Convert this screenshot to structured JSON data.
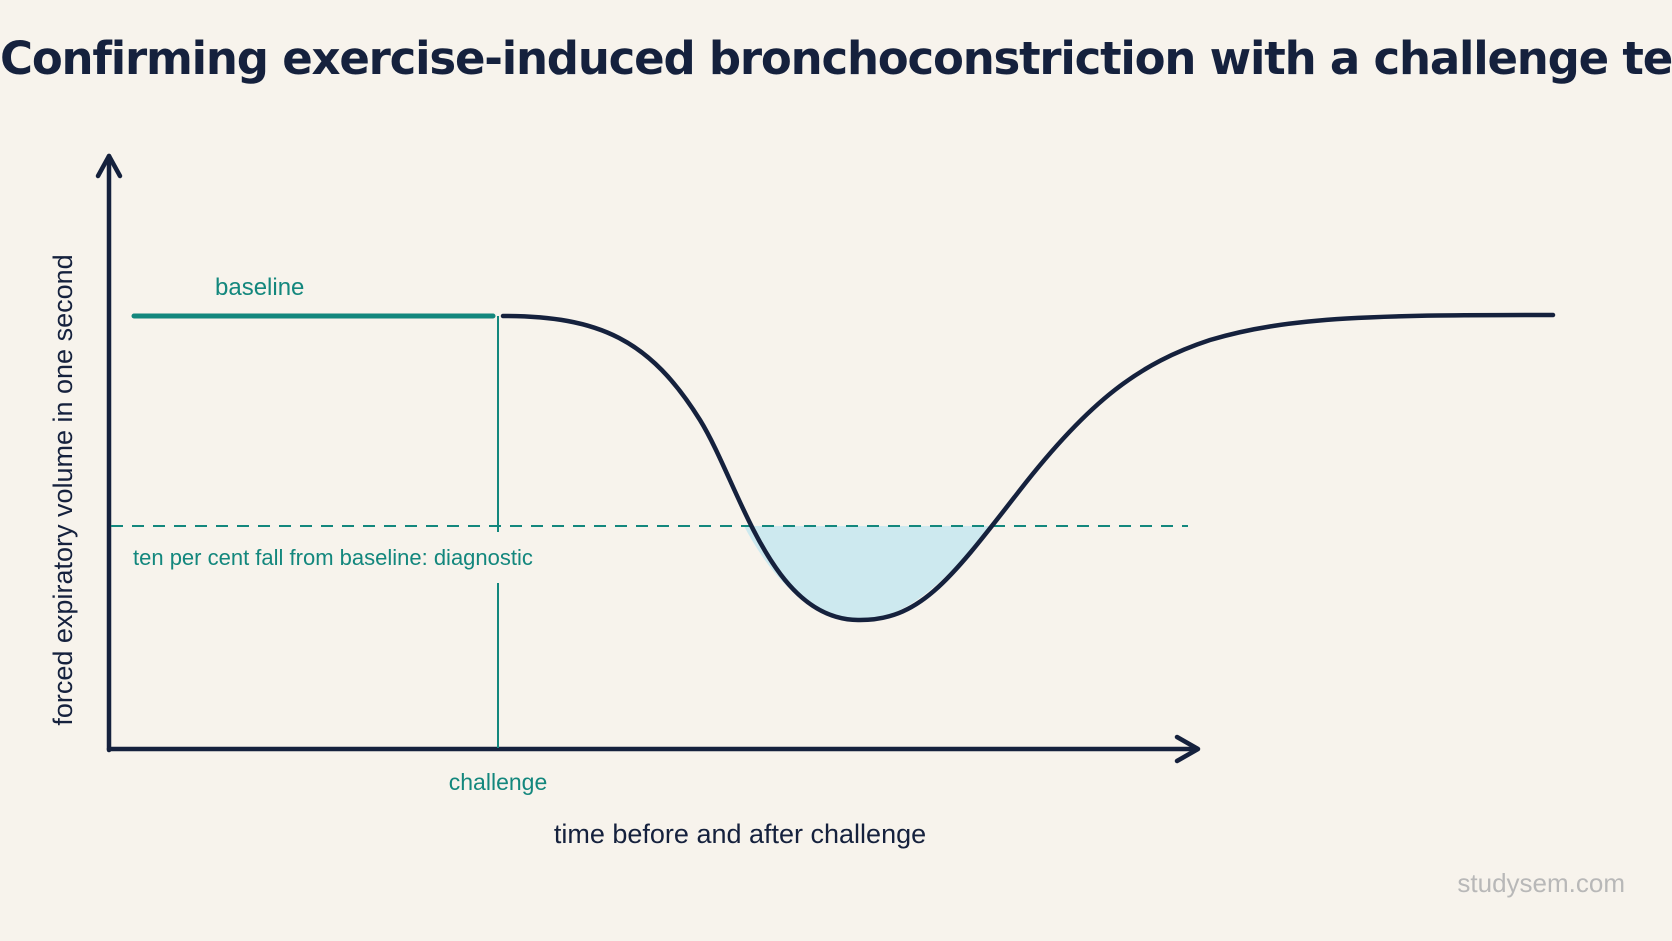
{
  "title": "Confirming exercise-induced bronchoconstriction with a challenge test",
  "labels": {
    "baseline": "baseline",
    "threshold": "ten per cent fall from baseline: diagnostic",
    "challenge": "challenge"
  },
  "axes": {
    "x_label": "time before and after challenge",
    "y_label": "forced expiratory volume in one second"
  },
  "watermark": "studysem.com",
  "colors": {
    "background": "#f7f3ec",
    "axis": "#15213d",
    "curve": "#15213d",
    "accent_teal": "#13877d",
    "dip_fill": "#cde9ef"
  }
}
